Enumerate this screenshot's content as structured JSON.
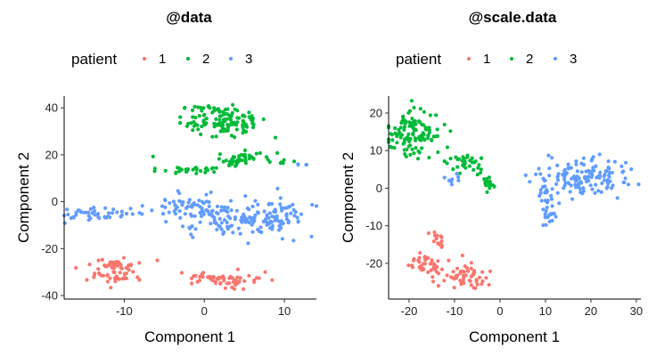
{
  "chart_data": [
    {
      "type": "scatter",
      "title": "@data",
      "xlabel": "Component 1",
      "ylabel": "Component 2",
      "xlim": [
        -17.5,
        14
      ],
      "ylim": [
        -41.5,
        45
      ],
      "xticks": [
        -10,
        0,
        10
      ],
      "yticks": [
        -40,
        -20,
        0,
        20,
        40
      ],
      "grid": false,
      "legend": {
        "title": "patient",
        "position": "top",
        "entries": [
          "1",
          "2",
          "3"
        ]
      },
      "series": [
        {
          "name": "1",
          "color": "#F8766D",
          "clusters": [
            {
              "cx": -12.0,
              "cy": -27.0,
              "sx": 2.0,
              "sy": 1.5,
              "n": 45
            },
            {
              "cx": -11.5,
              "cy": -32.5,
              "sx": 1.8,
              "sy": 1.4,
              "n": 30
            },
            {
              "cx": 2.0,
              "cy": -33.0,
              "sx": 2.8,
              "sy": 1.9,
              "n": 60
            }
          ]
        },
        {
          "name": "2",
          "color": "#00BA38",
          "clusters": [
            {
              "cx": 0.5,
              "cy": 39.5,
              "sx": 1.5,
              "sy": 1.0,
              "n": 18
            },
            {
              "cx": 2.5,
              "cy": 34.0,
              "sx": 2.6,
              "sy": 2.8,
              "n": 110
            },
            {
              "cx": 5.0,
              "cy": 18.0,
              "sx": 1.7,
              "sy": 1.4,
              "n": 50
            },
            {
              "cx": -2.0,
              "cy": 13.5,
              "sx": 2.2,
              "sy": 1.2,
              "n": 28
            },
            {
              "cx": 10.5,
              "cy": 17.5,
              "sx": 0.6,
              "sy": 0.8,
              "n": 5
            },
            {
              "cx": -6.5,
              "cy": 19.0,
              "sx": 0.2,
              "sy": 0.2,
              "n": 1
            }
          ]
        },
        {
          "name": "3",
          "color": "#619CFF",
          "clusters": [
            {
              "cx": -12.5,
              "cy": -5.5,
              "sx": 3.0,
              "sy": 1.5,
              "n": 45
            },
            {
              "cx": -2.0,
              "cy": -2.0,
              "sx": 3.0,
              "sy": 2.5,
              "n": 60
            },
            {
              "cx": 3.5,
              "cy": -8.0,
              "sx": 3.5,
              "sy": 3.5,
              "n": 90
            },
            {
              "cx": 9.0,
              "cy": -6.0,
              "sx": 2.0,
              "sy": 3.5,
              "n": 60
            },
            {
              "cx": 12.0,
              "cy": 16.0,
              "sx": 0.4,
              "sy": 0.4,
              "n": 4
            }
          ]
        }
      ]
    },
    {
      "type": "scatter",
      "title": "@scale.data",
      "xlabel": "Component 1",
      "ylabel": "Component 2",
      "xlim": [
        -24.5,
        31
      ],
      "ylim": [
        -29.5,
        24.5
      ],
      "xticks": [
        -20,
        -10,
        0,
        10,
        20,
        30
      ],
      "yticks": [
        -20,
        -10,
        0,
        10,
        20
      ],
      "grid": false,
      "legend": {
        "title": "patient",
        "position": "top",
        "entries": [
          "1",
          "2",
          "3"
        ]
      },
      "series": [
        {
          "name": "1",
          "color": "#F8766D",
          "clusters": [
            {
              "cx": -14.0,
              "cy": -13.5,
              "sx": 0.8,
              "sy": 1.5,
              "n": 15
            },
            {
              "cx": -16.0,
              "cy": -21.0,
              "sx": 1.8,
              "sy": 1.4,
              "n": 40
            },
            {
              "cx": -7.0,
              "cy": -23.5,
              "sx": 2.8,
              "sy": 1.6,
              "n": 55
            }
          ]
        },
        {
          "name": "2",
          "color": "#00BA38",
          "clusters": [
            {
              "cx": -19.5,
              "cy": 14.5,
              "sx": 3.0,
              "sy": 3.3,
              "n": 120
            },
            {
              "cx": -7.5,
              "cy": 7.0,
              "sx": 2.0,
              "sy": 1.4,
              "n": 35
            },
            {
              "cx": -3.0,
              "cy": 1.0,
              "sx": 0.9,
              "sy": 1.2,
              "n": 20
            }
          ]
        },
        {
          "name": "3",
          "color": "#619CFF",
          "clusters": [
            {
              "cx": 19.0,
              "cy": 3.0,
              "sx": 5.0,
              "sy": 2.2,
              "n": 140
            },
            {
              "cx": 10.5,
              "cy": -4.0,
              "sx": 1.0,
              "sy": 3.5,
              "n": 40
            },
            {
              "cx": -10.0,
              "cy": 2.0,
              "sx": 1.0,
              "sy": 1.2,
              "n": 8
            }
          ]
        }
      ]
    }
  ]
}
